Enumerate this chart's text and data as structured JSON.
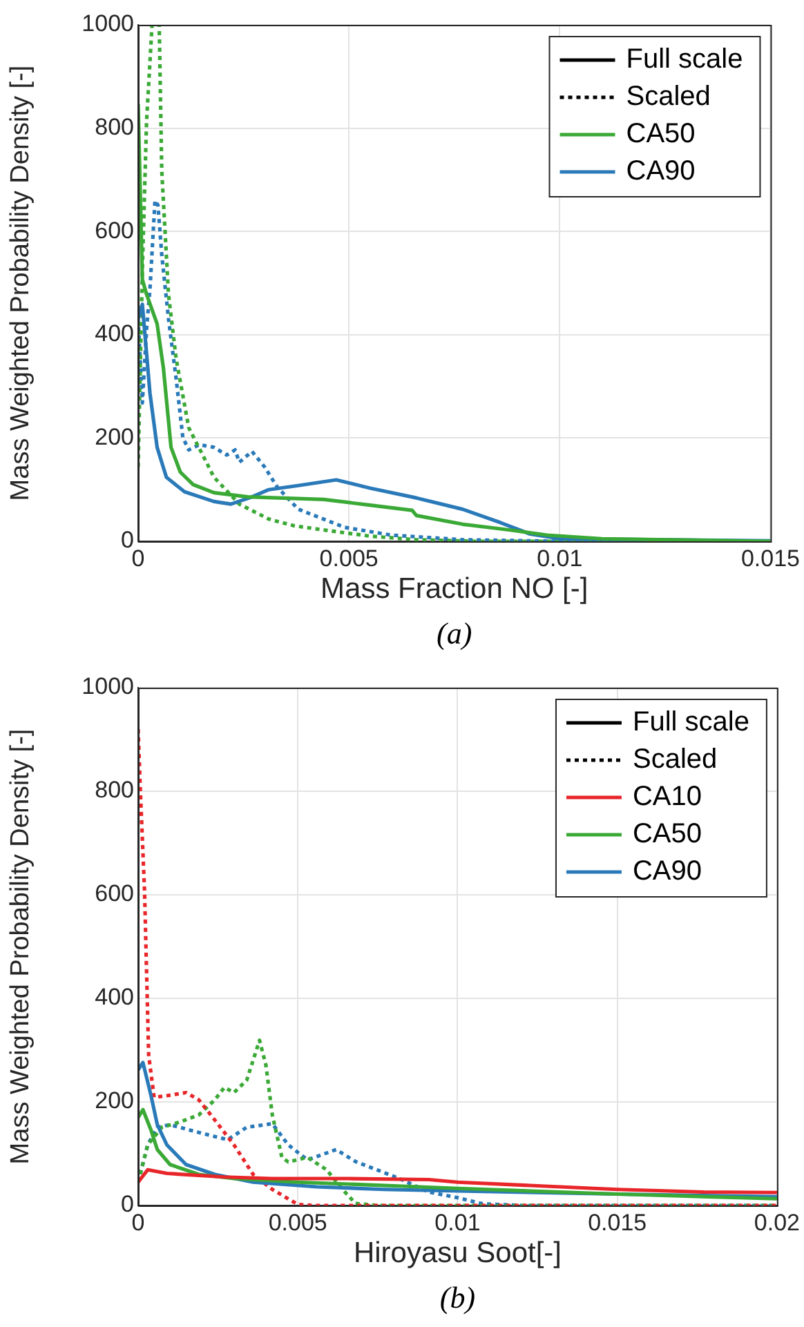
{
  "chart_data": [
    {
      "type": "line",
      "xlabel": "Mass Fraction NO [-]",
      "ylabel": "Mass Weighted Probability Density [-]",
      "annotations": [
        "(a)"
      ],
      "xlim": [
        0,
        0.015
      ],
      "xticks": [
        0,
        0.005,
        0.01,
        0.015
      ],
      "ylim": [
        0,
        1000
      ],
      "yticks": [
        0,
        200,
        400,
        600,
        800,
        1000
      ],
      "grid": true,
      "legend": "top right",
      "marker": "none",
      "series": [
        {
          "name": "Full scale",
          "color": "#000000",
          "line_style": "solid"
        },
        {
          "name": "Scaled",
          "color": "#000000",
          "line_style": "dotted"
        },
        {
          "name": "CA50",
          "color": "#3aa935",
          "line_style": "solid",
          "x": [
            0,
            0.0001,
            0.0002,
            0.00045,
            0.0006,
            0.00078,
            0.001,
            0.0013,
            0.0018,
            0.0026,
            0.0033,
            0.0044,
            0.0055,
            0.0065,
            0.0066,
            0.0077,
            0.0088,
            0.0097,
            0.011,
            0.015
          ],
          "values": [
            847,
            507,
            478,
            421,
            335,
            182,
            134,
            110,
            94,
            86,
            84,
            81,
            70,
            60,
            50,
            33,
            22,
            12,
            5,
            0
          ]
        },
        {
          "name": "CA90",
          "color": "#2a7ab9",
          "line_style": "solid",
          "x": [
            0,
            0.0001,
            0.00028,
            0.00045,
            0.00067,
            0.0011,
            0.0018,
            0.0022,
            0.0027,
            0.0031,
            0.0038,
            0.0047,
            0.0049,
            0.0055,
            0.0066,
            0.0077,
            0.0086,
            0.0093,
            0.01,
            0.015
          ],
          "values": [
            431,
            459,
            287,
            182,
            124,
            96,
            77,
            72,
            86,
            100,
            108,
            119,
            115,
            103,
            84,
            62,
            36,
            14,
            5,
            1
          ]
        },
        {
          "color": "#3aa935",
          "line_style": "dotted",
          "x": [
            0,
            0.0001,
            0.0002,
            0.00033,
            0.0005,
            0.00056,
            0.00072,
            0.0009,
            0.0012,
            0.0018,
            0.0024,
            0.0031,
            0.0037,
            0.0044,
            0.0055,
            0.0066,
            0.008,
            0.015
          ],
          "values": [
            144,
            526,
            813,
            1000,
            1000,
            718,
            478,
            354,
            220,
            124,
            72,
            43,
            30,
            22,
            10,
            3,
            0,
            0
          ]
        },
        {
          "color": "#2a7ab9",
          "line_style": "dotted",
          "x": [
            0,
            0.0001,
            0.0002,
            0.00028,
            0.0004,
            0.00047,
            0.00056,
            0.00072,
            0.0009,
            0.00106,
            0.0012,
            0.00145,
            0.0018,
            0.0021,
            0.0023,
            0.0024,
            0.0027,
            0.003,
            0.0033,
            0.0038,
            0.0049,
            0.006,
            0.0077,
            0.01,
            0.015
          ],
          "values": [
            431,
            268,
            411,
            488,
            660,
            651,
            555,
            431,
            316,
            201,
            177,
            187,
            182,
            167,
            177,
            153,
            174,
            144,
            105,
            62,
            27,
            12,
            3,
            0,
            0
          ]
        }
      ]
    },
    {
      "type": "line",
      "xlabel": "Hiroyasu Soot[-]",
      "ylabel": "Mass Weighted Probability Density [-]",
      "annotations": [
        "(b)"
      ],
      "xlim": [
        0,
        0.02
      ],
      "xticks": [
        0,
        0.005,
        0.01,
        0.015,
        0.02
      ],
      "ylim": [
        0,
        1000
      ],
      "yticks": [
        0,
        200,
        400,
        600,
        800,
        1000
      ],
      "grid": true,
      "legend": "top right",
      "marker": "none",
      "series": [
        {
          "name": "Full scale",
          "color": "#000000",
          "line_style": "solid"
        },
        {
          "name": "Scaled",
          "color": "#000000",
          "line_style": "dotted"
        },
        {
          "name": "CA10",
          "color": "#e8262a",
          "line_style": "solid",
          "x": [
            0,
            0.0003,
            0.0009,
            0.0027,
            0.0042,
            0.0066,
            0.0091,
            0.01,
            0.0125,
            0.015,
            0.0177,
            0.02
          ],
          "values": [
            45,
            69,
            62,
            55,
            52,
            52,
            50,
            45,
            38,
            31,
            26,
            25
          ]
        },
        {
          "name": "CA50",
          "color": "#3aa935",
          "line_style": "solid",
          "x": [
            0,
            0.00015,
            0.0004,
            0.0006,
            0.001,
            0.0019,
            0.003,
            0.005,
            0.008,
            0.01,
            0.015,
            0.02
          ],
          "values": [
            170,
            185,
            146,
            108,
            79,
            60,
            52,
            45,
            38,
            33,
            22,
            13
          ]
        },
        {
          "name": "CA90",
          "color": "#2a7ab9",
          "line_style": "solid",
          "x": [
            0,
            0.00015,
            0.0004,
            0.0006,
            0.0009,
            0.0015,
            0.0024,
            0.0036,
            0.0056,
            0.0077,
            0.01,
            0.015,
            0.02
          ],
          "values": [
            262,
            276,
            213,
            156,
            117,
            79,
            60,
            45,
            36,
            31,
            28,
            22,
            17
          ]
        },
        {
          "color": "#e8262a",
          "line_style": "dotted",
          "x": [
            0,
            7e-05,
            0.0002,
            0.00033,
            0.0005,
            0.0009,
            0.0015,
            0.0019,
            0.0024,
            0.003,
            0.0036,
            0.0042,
            0.005,
            0.0055,
            0.02
          ],
          "values": [
            920,
            800,
            608,
            290,
            209,
            212,
            218,
            204,
            165,
            117,
            60,
            31,
            2,
            0,
            0
          ]
        },
        {
          "color": "#3aa935",
          "line_style": "dotted",
          "x": [
            0,
            0.0003,
            0.00074,
            0.0013,
            0.0019,
            0.0024,
            0.0027,
            0.003,
            0.0034,
            0.0038,
            0.004,
            0.0042,
            0.0045,
            0.0047,
            0.0053,
            0.0059,
            0.0064,
            0.0068,
            0.0075,
            0.02
          ],
          "values": [
            45,
            117,
            151,
            161,
            175,
            204,
            228,
            218,
            242,
            319,
            271,
            175,
            93,
            84,
            93,
            69,
            31,
            4,
            0,
            0
          ]
        },
        {
          "color": "#2a7ab9",
          "line_style": "dotted",
          "x": [
            0,
            0.0003,
            0.0006,
            0.001,
            0.0019,
            0.0028,
            0.0034,
            0.0042,
            0.0047,
            0.0053,
            0.0062,
            0.0068,
            0.0073,
            0.0081,
            0.0091,
            0.01,
            0.0108,
            0.012,
            0.02
          ],
          "values": [
            45,
            117,
            151,
            156,
            141,
            127,
            151,
            158,
            117,
            88,
            108,
            85,
            73,
            54,
            26,
            15,
            3,
            0,
            0
          ]
        }
      ]
    }
  ]
}
